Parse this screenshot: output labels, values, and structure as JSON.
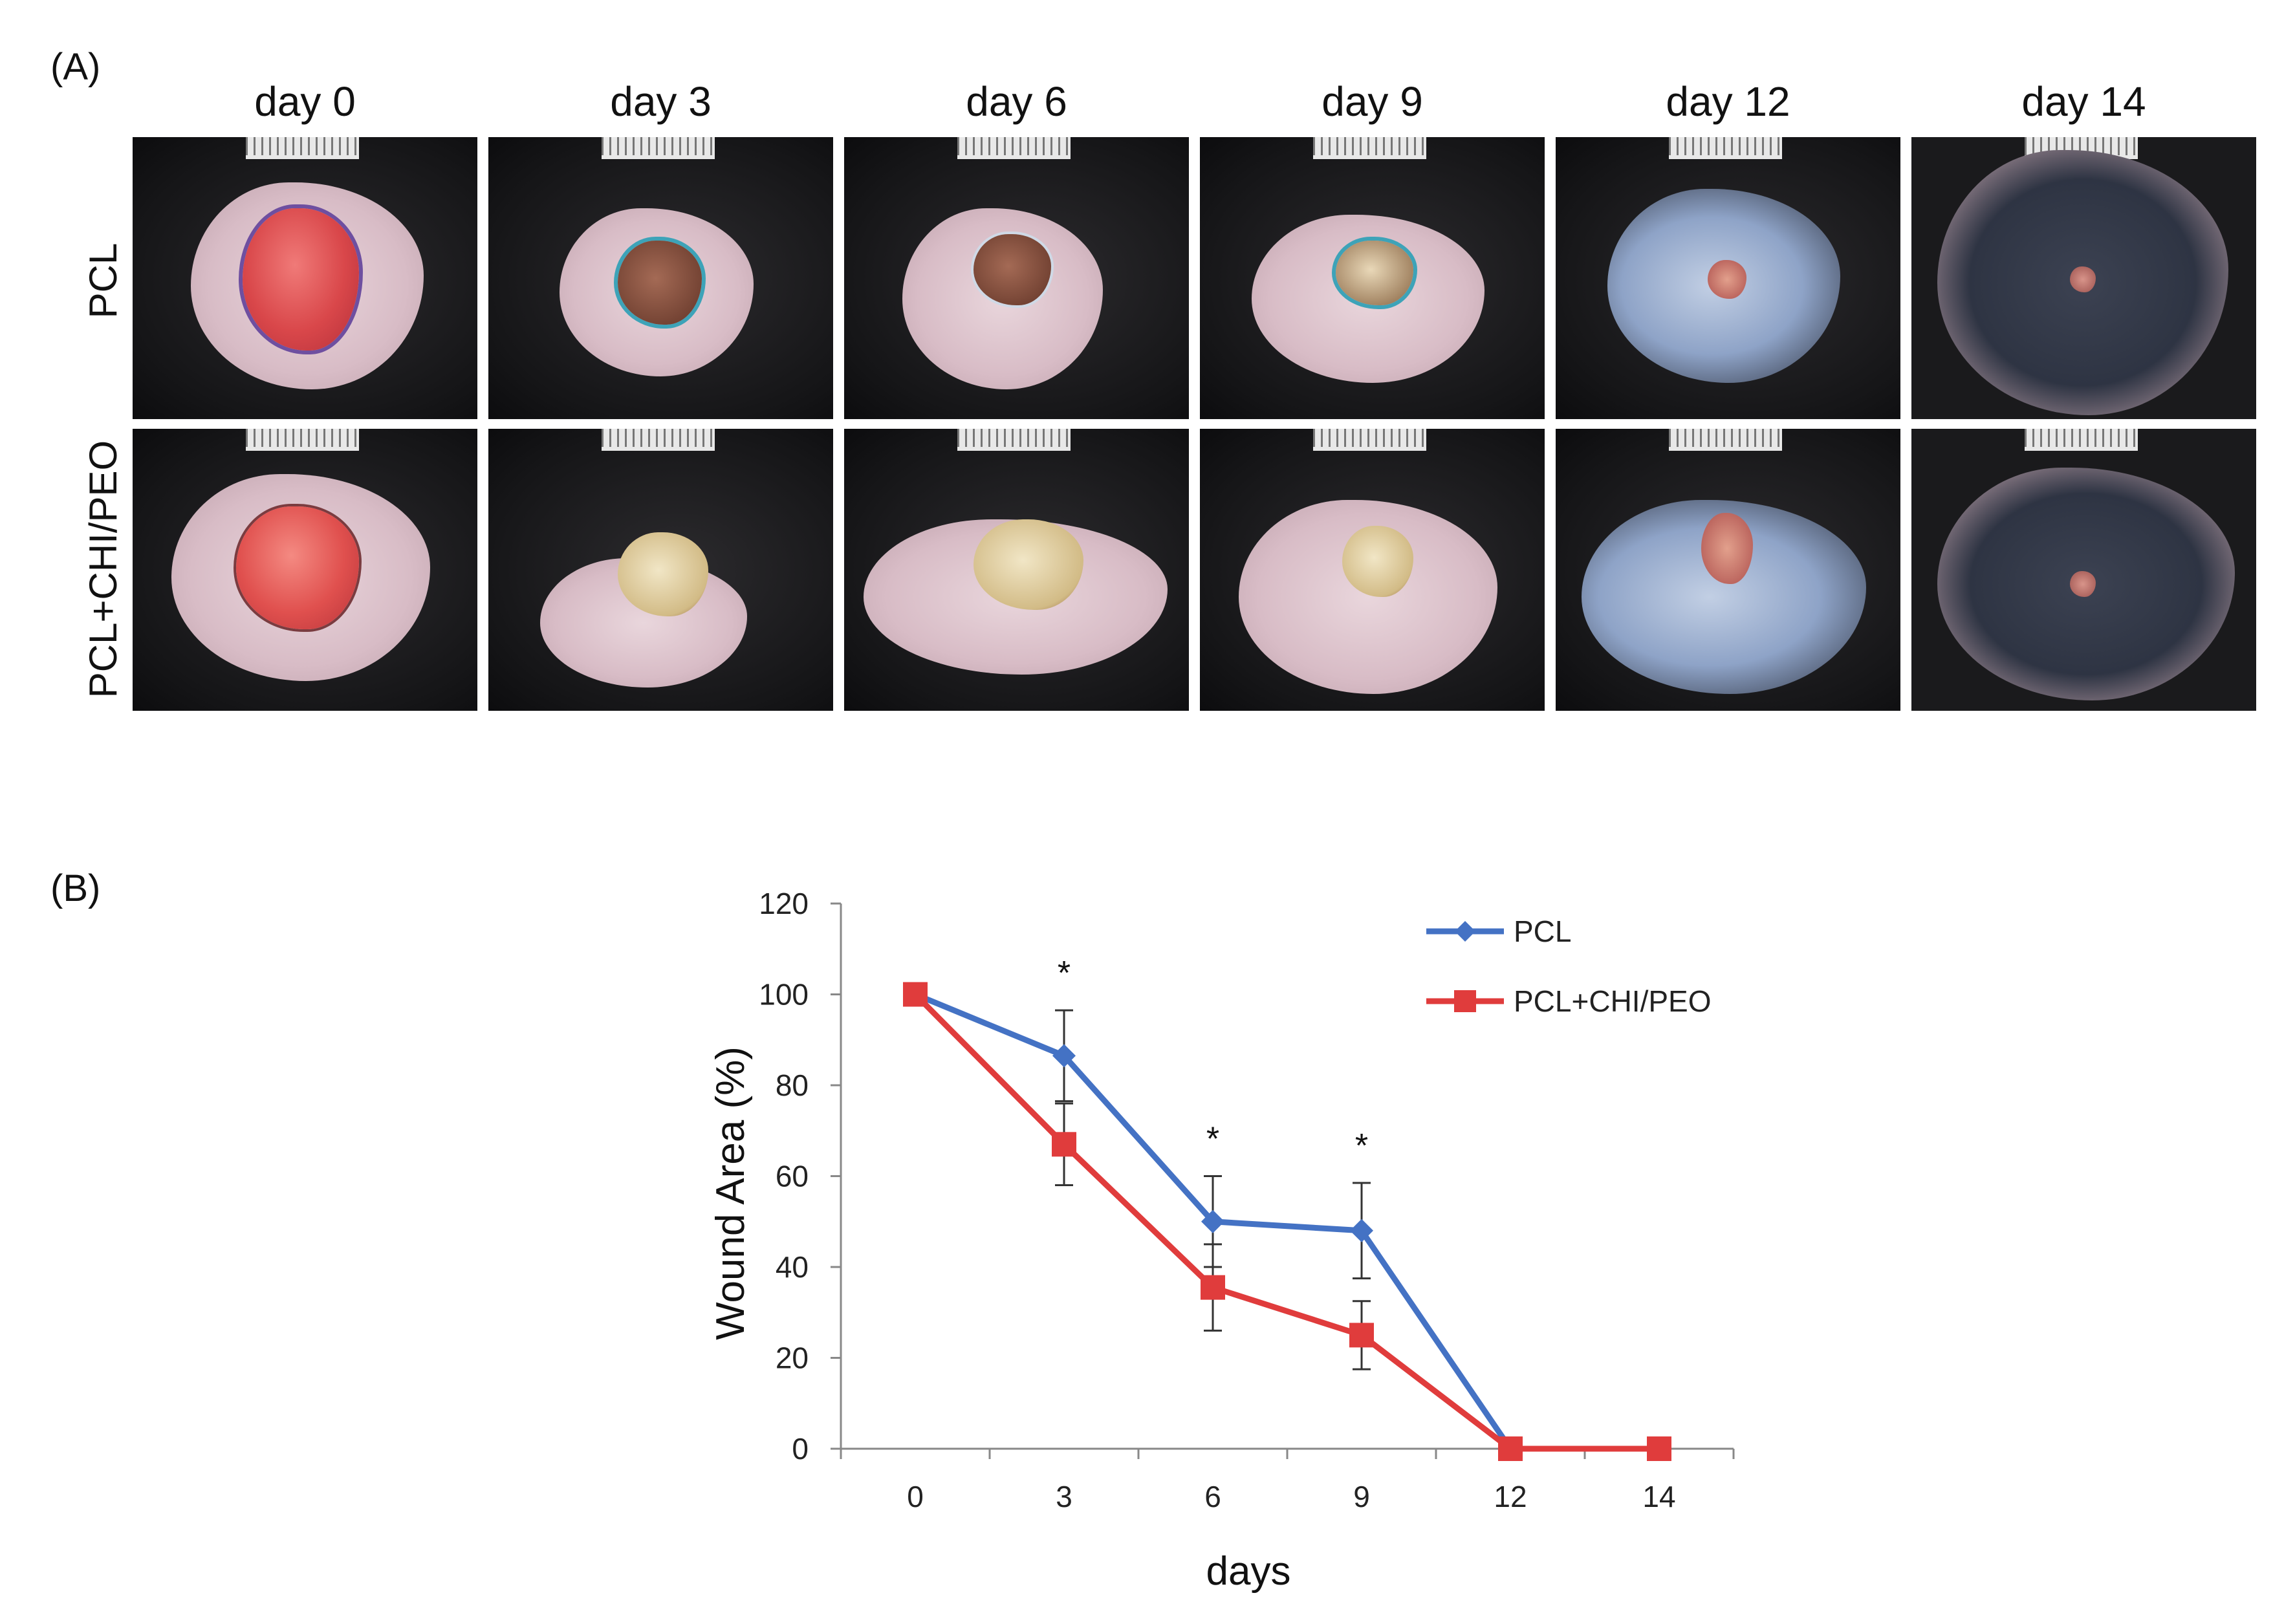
{
  "panel_a": {
    "label": "(A)",
    "columns": [
      "day 0",
      "day 3",
      "day 6",
      "day 9",
      "day 12",
      "day 14"
    ],
    "rows": [
      "PCL",
      "PCL+CHI/PEO"
    ]
  },
  "panel_b": {
    "label": "(B)"
  },
  "chart_data": {
    "type": "line",
    "title": "",
    "xlabel": "days",
    "ylabel": "Wound Area (%)",
    "categories": [
      "0",
      "3",
      "6",
      "9",
      "12",
      "14"
    ],
    "ylim": [
      0,
      120
    ],
    "yticks": [
      "0",
      "20",
      "40",
      "60",
      "80",
      "100",
      "120"
    ],
    "legend_position": "top-right",
    "significance_marker": "*",
    "significant_at": [
      "3",
      "6",
      "9"
    ],
    "series": [
      {
        "name": "PCL",
        "color": "#4472C4",
        "marker": "diamond",
        "values": [
          100,
          86.5,
          50,
          48,
          0,
          0
        ],
        "errors": [
          0,
          10,
          10,
          10.5,
          0,
          0
        ]
      },
      {
        "name": "PCL+CHI/PEO",
        "color": "#E03C3C",
        "marker": "square",
        "values": [
          100,
          67,
          35.5,
          25,
          0,
          0
        ],
        "errors": [
          0,
          9,
          9.5,
          7.5,
          0,
          0
        ]
      }
    ]
  }
}
